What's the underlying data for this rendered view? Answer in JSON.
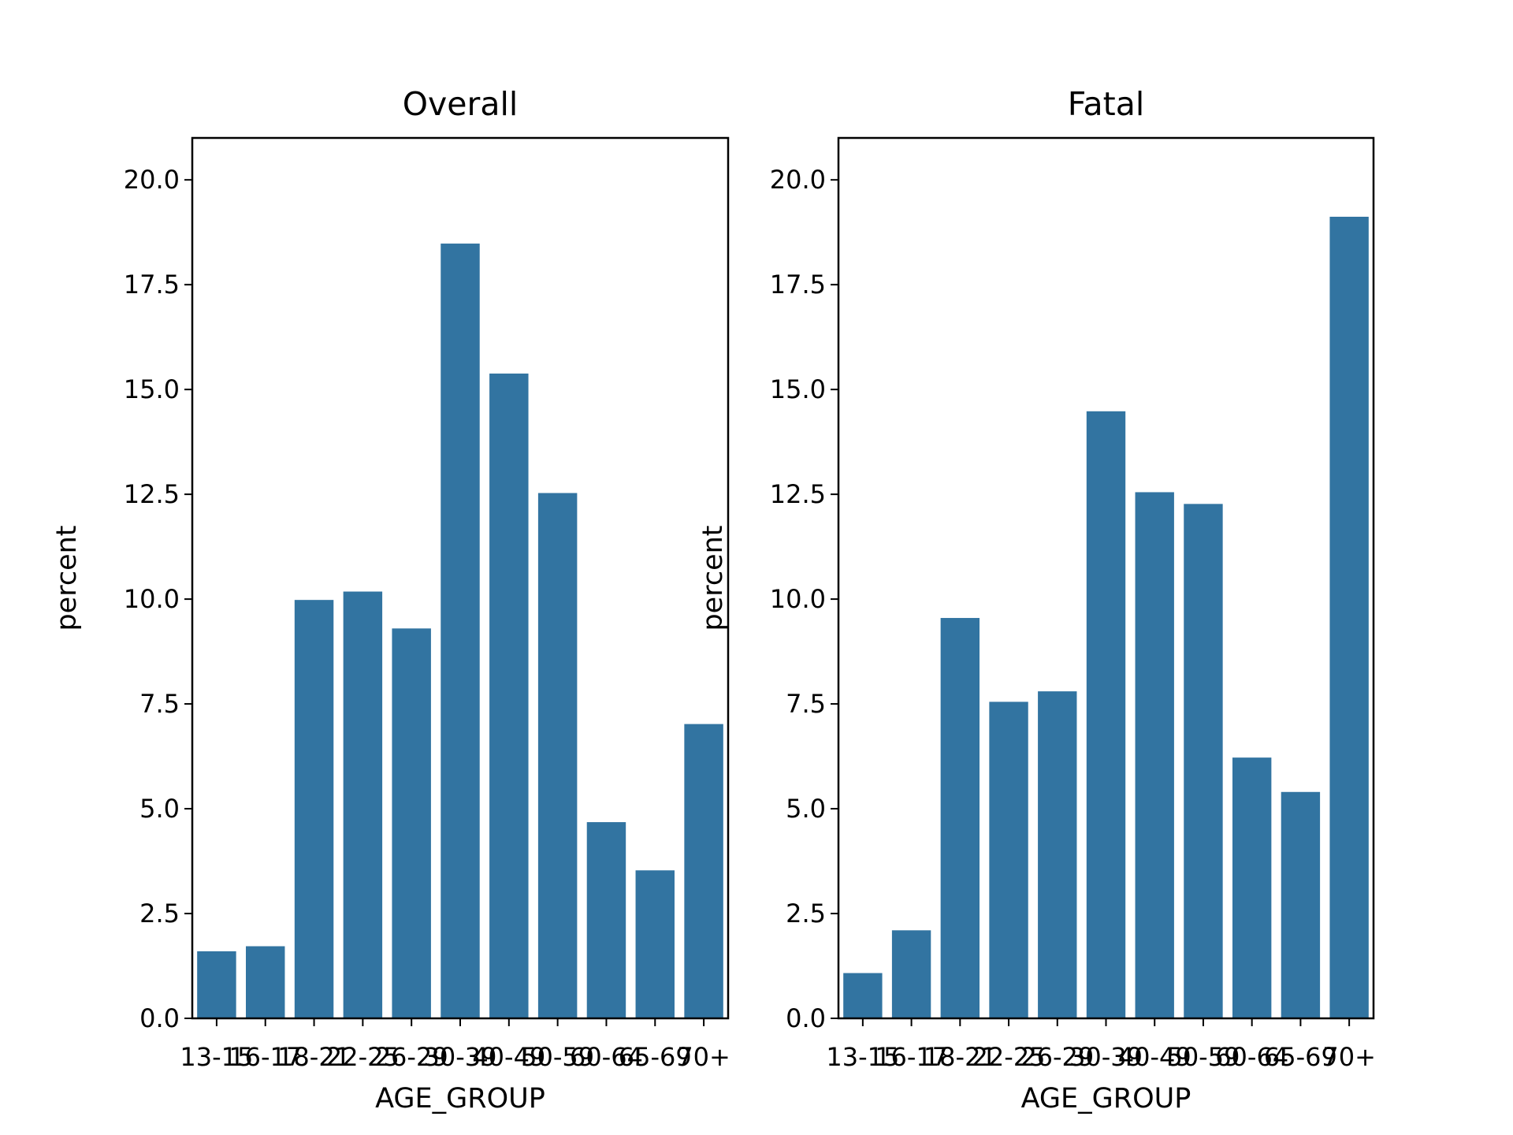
{
  "chart_data": [
    {
      "type": "bar",
      "title": "Overall",
      "xlabel": "AGE_GROUP",
      "ylabel": "percent",
      "categories": [
        "13-15",
        "16-17",
        "18-21",
        "22-25",
        "26-29",
        "30-39",
        "40-49",
        "50-59",
        "60-64",
        "65-69",
        "70+"
      ],
      "values": [
        1.6,
        1.72,
        9.98,
        10.18,
        9.3,
        18.48,
        15.38,
        12.53,
        4.68,
        3.53,
        7.02
      ],
      "ylim": [
        0,
        21
      ],
      "yticks": [
        "0.0",
        "2.5",
        "5.0",
        "7.5",
        "10.0",
        "12.5",
        "15.0",
        "17.5",
        "20.0"
      ],
      "color": "#3274a1",
      "grid": false
    },
    {
      "type": "bar",
      "title": "Fatal",
      "xlabel": "AGE_GROUP",
      "ylabel": "percent",
      "categories": [
        "13-15",
        "16-17",
        "18-21",
        "22-25",
        "26-29",
        "30-39",
        "40-49",
        "50-59",
        "60-64",
        "65-69",
        "70+"
      ],
      "values": [
        1.08,
        2.1,
        9.55,
        7.55,
        7.8,
        14.48,
        12.55,
        12.27,
        6.22,
        5.4,
        19.12
      ],
      "ylim": [
        0,
        21
      ],
      "yticks": [
        "0.0",
        "2.5",
        "5.0",
        "7.5",
        "10.0",
        "12.5",
        "15.0",
        "17.5",
        "20.0"
      ],
      "color": "#3274a1",
      "grid": false
    }
  ]
}
